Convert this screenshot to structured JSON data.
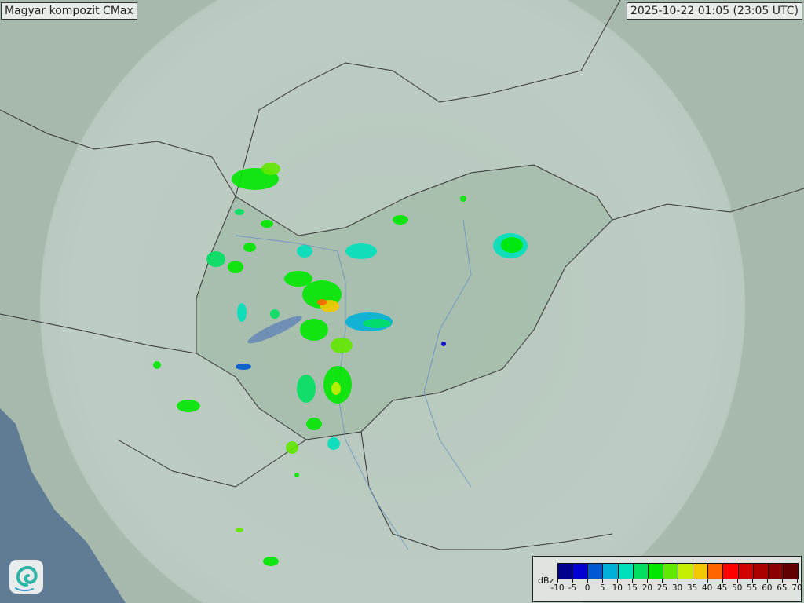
{
  "title": "Magyar kompozit  CMax",
  "timestamp": "2025-10-22 01:05 (23:05 UTC)",
  "legend": {
    "unit": "dBz",
    "ticks": [
      "-10",
      "-5",
      "0",
      "5",
      "10",
      "15",
      "20",
      "25",
      "30",
      "35",
      "40",
      "45",
      "50",
      "55",
      "60",
      "65",
      "70"
    ],
    "colors": [
      "#00008c",
      "#0000d2",
      "#0058d2",
      "#00b0d8",
      "#00e0bc",
      "#00e060",
      "#00e800",
      "#60e800",
      "#c4f000",
      "#f4c800",
      "#ff6400",
      "#ff0000",
      "#d20000",
      "#ac0000",
      "#880000",
      "#600000"
    ]
  },
  "logo": {
    "icon": "swirl-logo-icon"
  },
  "map": {
    "background": "#a7b9ad",
    "coverage": "#c3d2ca",
    "sea": "#5f7c94"
  }
}
